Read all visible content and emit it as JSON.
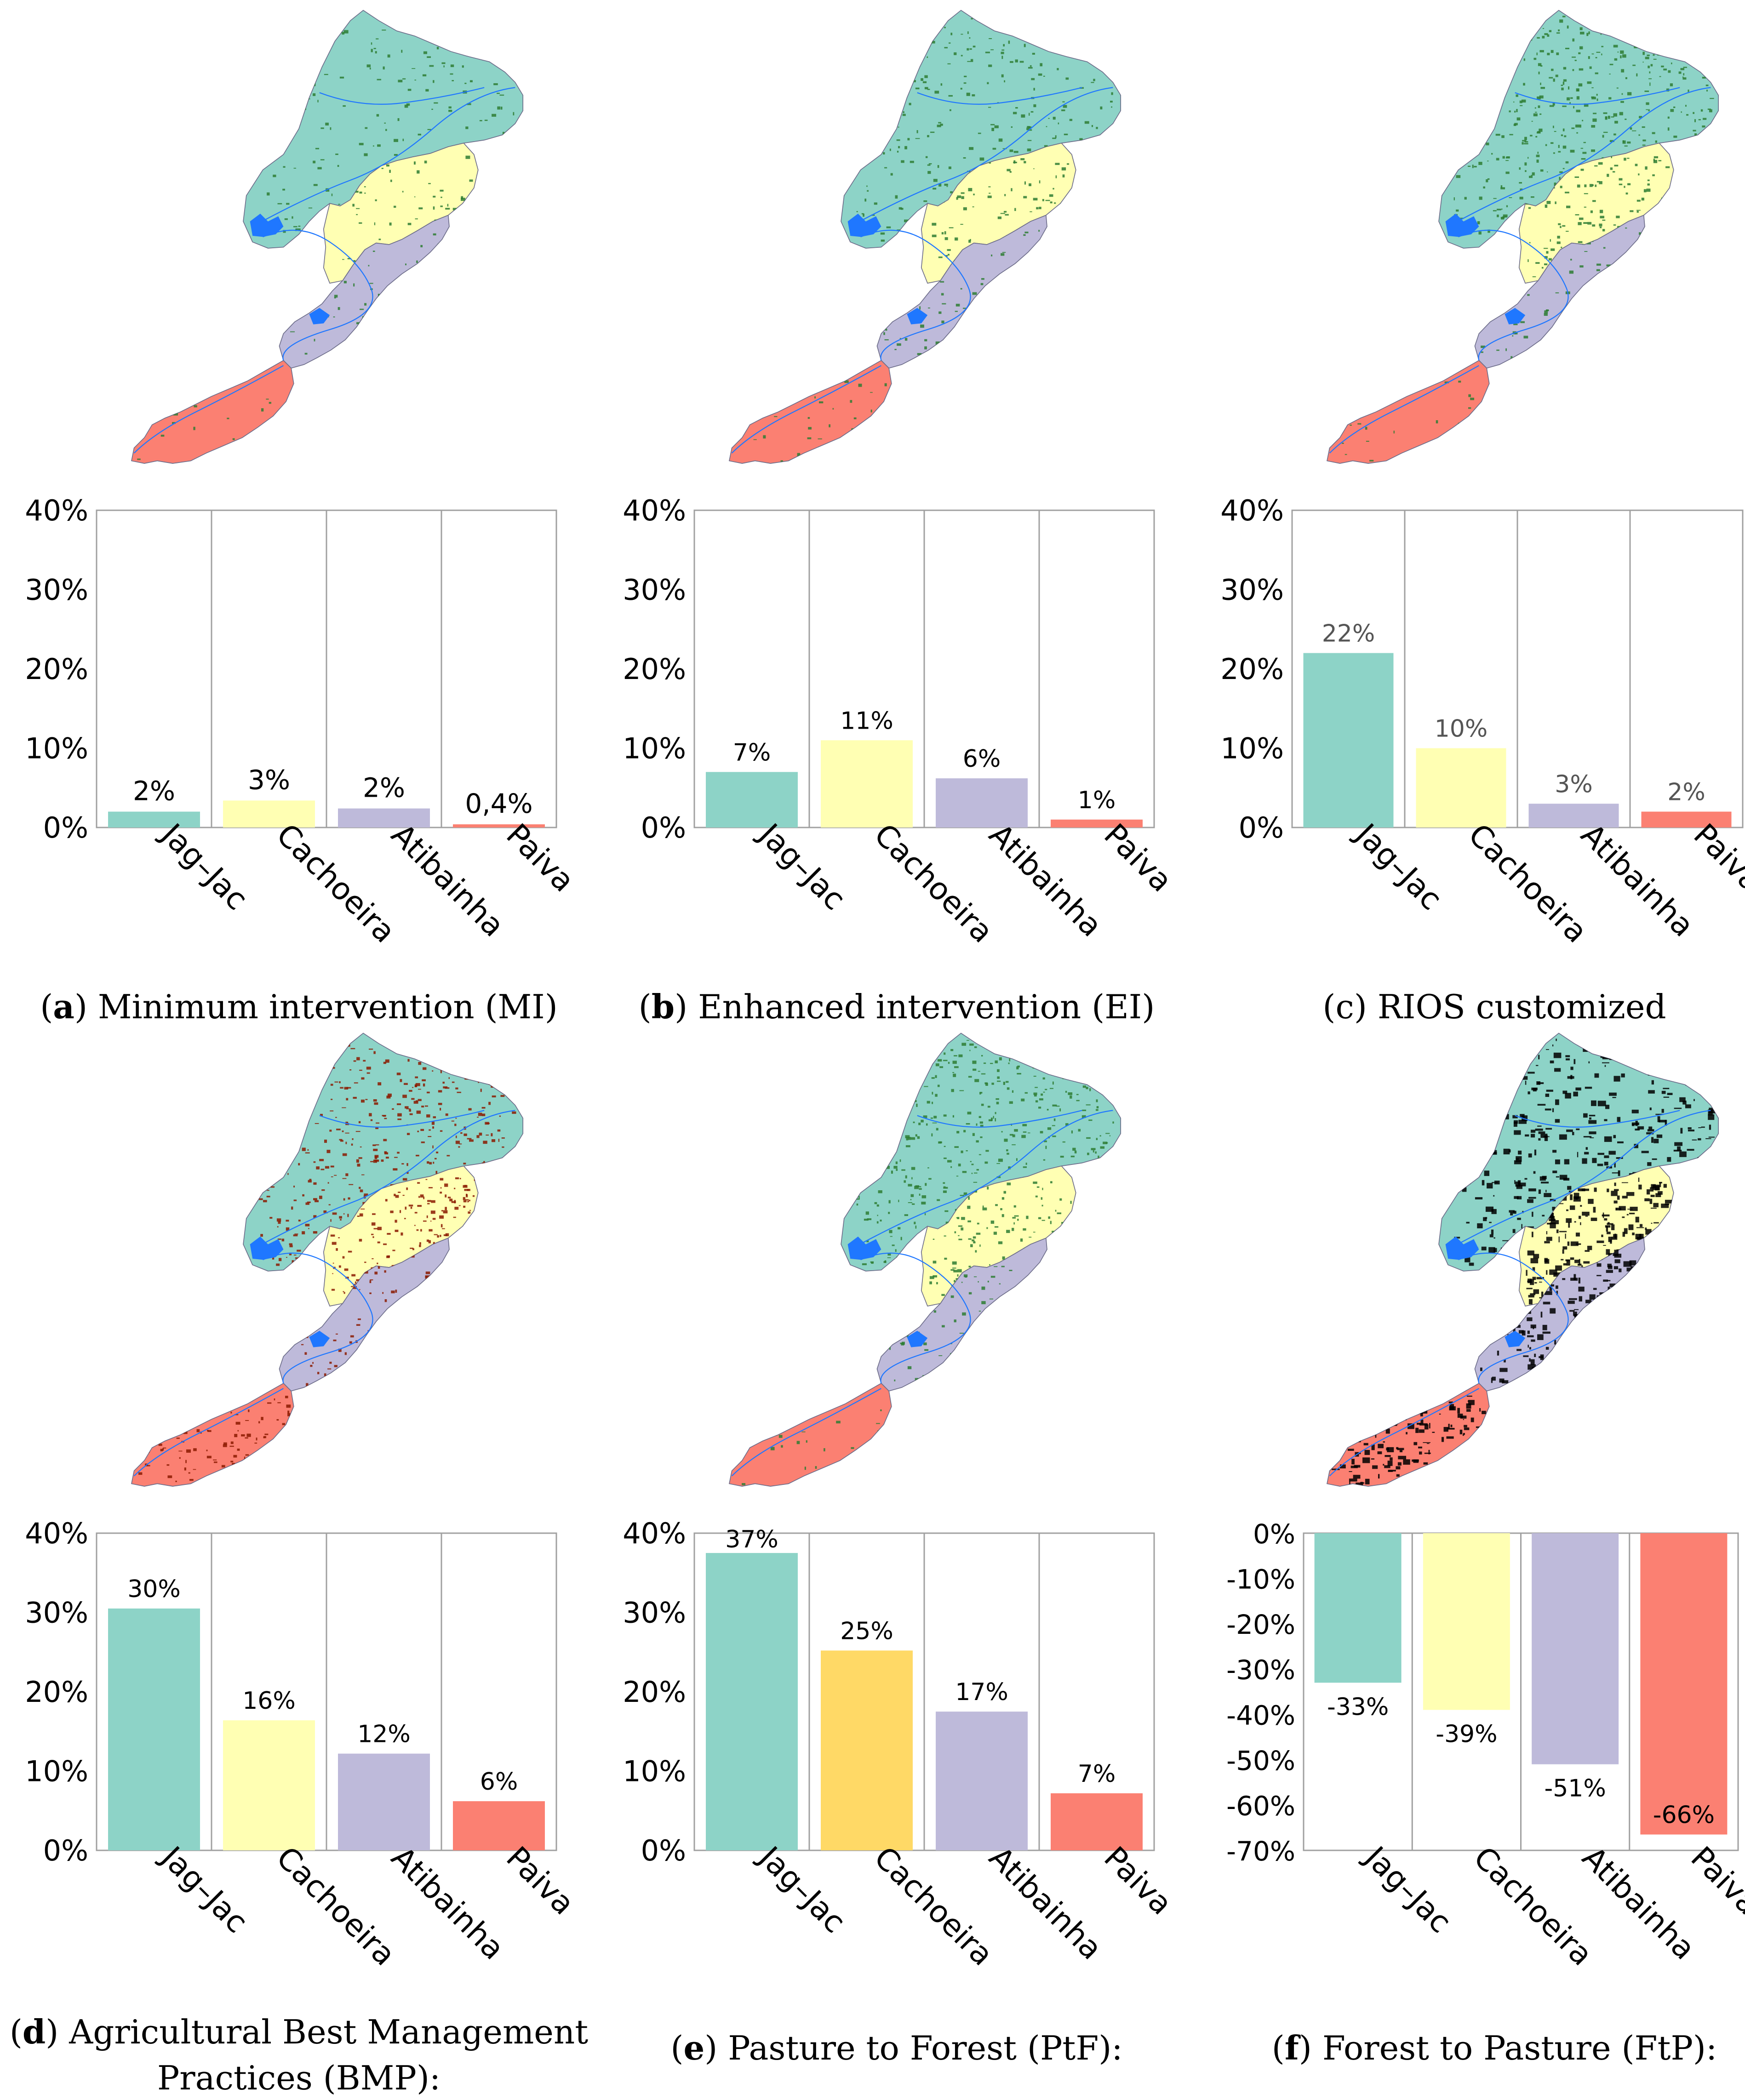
{
  "colors": {
    "Jag-Jac": "#8dd3c7",
    "Cachoeira": "#ffffb3",
    "Cachoeira_PtF": "#ffd966",
    "Atibainha": "#bebada",
    "Paiva": "#fb8072",
    "forest_overlay": "#2e7d32",
    "bmp_overlay": "#8b1a00",
    "ftp_overlay": "#000000",
    "river": "#1f77ff"
  },
  "chart_data": [
    {
      "id": "a",
      "type": "bar",
      "categories": [
        "Jag–Jac",
        "Cachoeira",
        "Atibainha",
        "Paiva"
      ],
      "values": [
        2,
        3.4,
        2.4,
        0.4
      ],
      "data_labels": [
        "2%",
        "3%",
        "2%",
        "0,4%"
      ],
      "ylim": [
        0,
        40
      ],
      "yticks": [
        "0%",
        "10%",
        "20%",
        "30%",
        "40%"
      ],
      "caption_letter": "a",
      "caption_text": " Minimum intervention (MI)",
      "map_overlay": "forest"
    },
    {
      "id": "b",
      "type": "bar",
      "categories": [
        "Jag–Jac",
        "Cachoeira",
        "Atibainha",
        "Paiva"
      ],
      "values": [
        7,
        11,
        6.2,
        1
      ],
      "data_labels": [
        "7%",
        "11%",
        "6%",
        "1%"
      ],
      "ylim": [
        0,
        40
      ],
      "yticks": [
        "0%",
        "10%",
        "20%",
        "30%",
        "40%"
      ],
      "caption_letter": "b",
      "caption_text": " Enhanced intervention (EI)",
      "map_overlay": "forest"
    },
    {
      "id": "c",
      "type": "bar",
      "categories": [
        "Jag–Jac",
        "Cachoeira",
        "Atibainha",
        "Paiva"
      ],
      "values": [
        22,
        10,
        3,
        2
      ],
      "data_labels": [
        "22%",
        "10%",
        "3%",
        "2%"
      ],
      "ylim": [
        0,
        40
      ],
      "yticks": [
        "0%",
        "10%",
        "20%",
        "30%",
        "40%"
      ],
      "caption_letter": "",
      "caption_text": "(c) RIOS customized",
      "map_overlay": "forest"
    },
    {
      "id": "d",
      "type": "bar",
      "categories": [
        "Jag–Jac",
        "Cachoeira",
        "Atibainha",
        "Paiva"
      ],
      "values": [
        30.5,
        16.4,
        12.2,
        6.2
      ],
      "data_labels": [
        "30%",
        "16%",
        "12%",
        "6%"
      ],
      "ylim": [
        0,
        40
      ],
      "yticks": [
        "0%",
        "10%",
        "20%",
        "30%",
        "40%"
      ],
      "caption_letter": "d",
      "caption_text": " Agricultural Best Management",
      "caption_line2": "Practices (BMP):",
      "map_overlay": "bmp"
    },
    {
      "id": "e",
      "type": "bar",
      "categories": [
        "Jag–Jac",
        "Cachoeira",
        "Atibainha",
        "Paiva"
      ],
      "values": [
        37.5,
        25.2,
        17.5,
        7.2
      ],
      "data_labels": [
        "37%",
        "25%",
        "17%",
        "7%"
      ],
      "ylim": [
        0,
        40
      ],
      "yticks": [
        "0%",
        "10%",
        "20%",
        "30%",
        "40%"
      ],
      "caption_letter": "e",
      "caption_text": " Pasture to Forest (PtF):",
      "map_overlay": "forest"
    },
    {
      "id": "f",
      "type": "bar",
      "categories": [
        "Jag–Jac",
        "Cachoeira",
        "Atibainha",
        "Paiva"
      ],
      "values": [
        -33,
        -39,
        -51,
        -66.5
      ],
      "data_labels": [
        "-33%",
        "-39%",
        "-51%",
        "-66%"
      ],
      "ylim": [
        -70,
        0
      ],
      "yticks": [
        "0%",
        "-10%",
        "-20%",
        "-30%",
        "-40%",
        "-50%",
        "-60%",
        "-70%"
      ],
      "caption_letter": "f",
      "caption_text": " Forest to Pasture (FtP):",
      "map_overlay": "ftp"
    }
  ]
}
